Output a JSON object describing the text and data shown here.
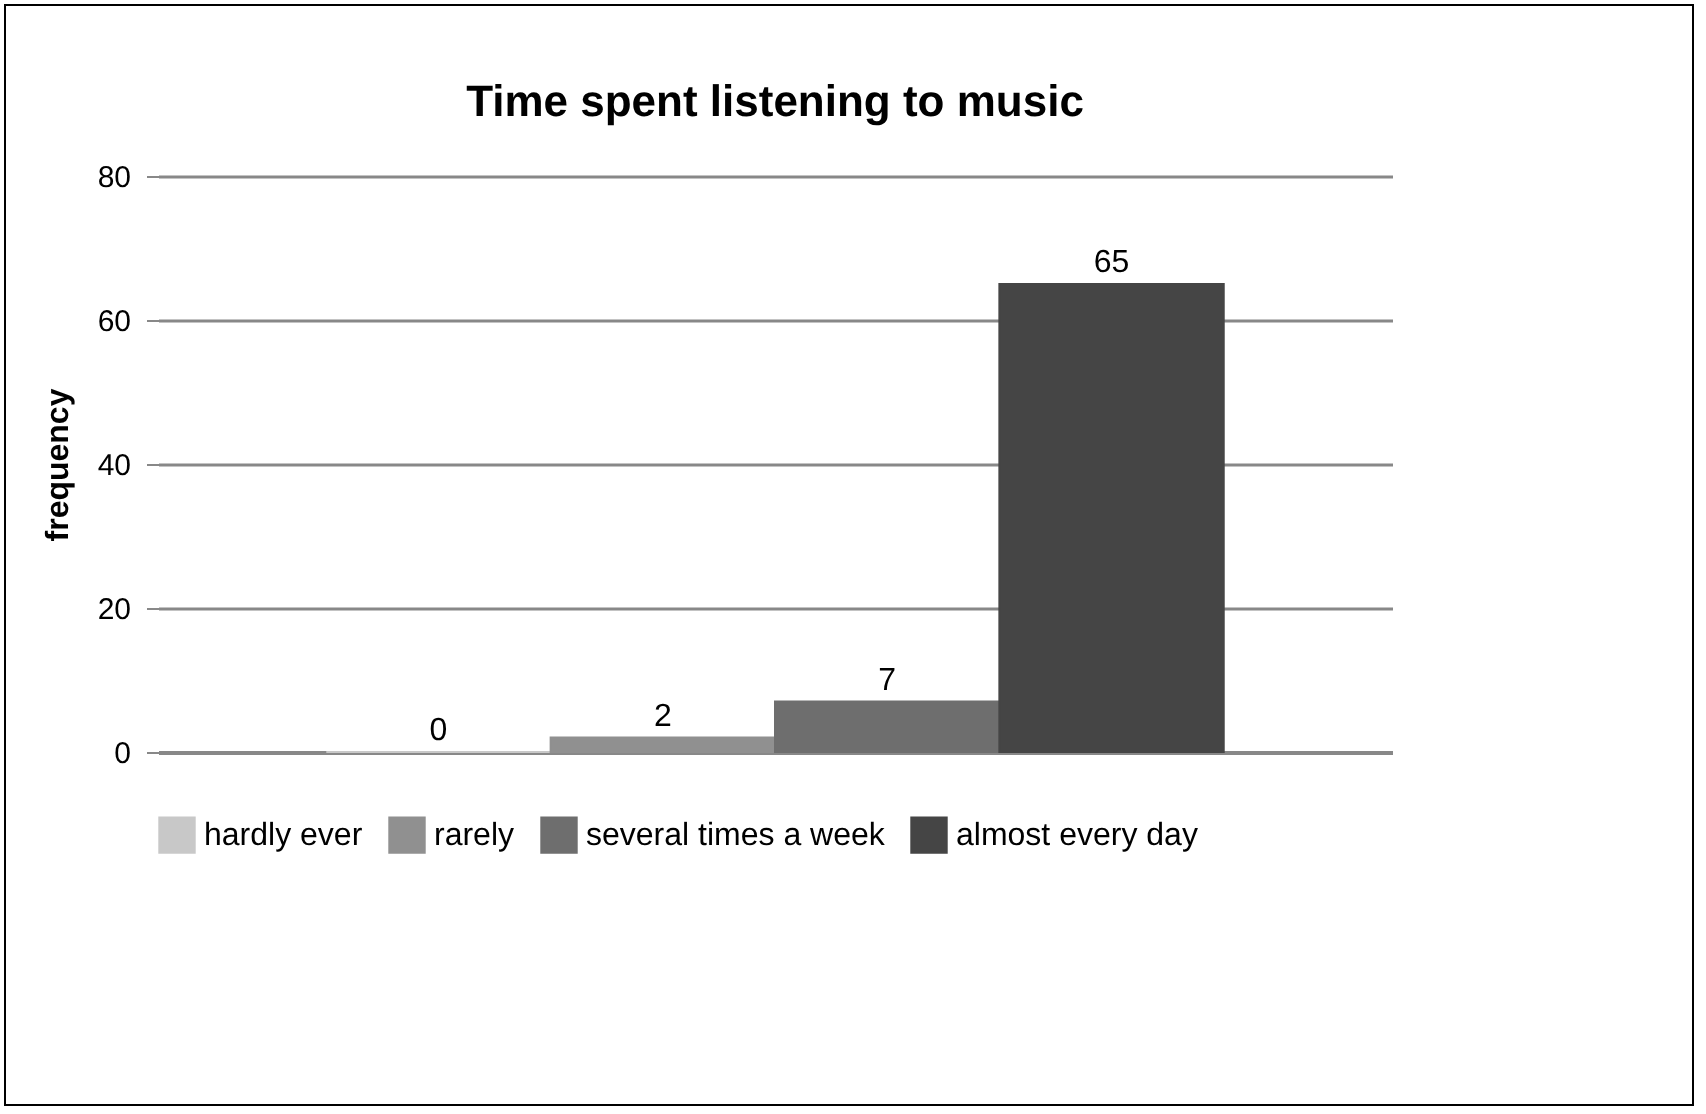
{
  "chart_data": {
    "type": "bar",
    "title": "Time spent listening to music",
    "ylabel": "frequency",
    "categories": [
      null
    ],
    "series": [
      {
        "name": "hardly ever",
        "color": "#c8c8c8",
        "values": [
          0
        ]
      },
      {
        "name": "rarely",
        "color": "#909090",
        "values": [
          2
        ]
      },
      {
        "name": "several times a week",
        "color": "#6e6e6e",
        "values": [
          7
        ]
      },
      {
        "name": "almost every day",
        "color": "#454545",
        "values": [
          65
        ]
      }
    ],
    "ylim": [
      0,
      80
    ],
    "yticks": [
      0,
      20,
      40,
      60,
      80
    ],
    "grid": "y",
    "legend": "bottom",
    "data_labels": true
  }
}
